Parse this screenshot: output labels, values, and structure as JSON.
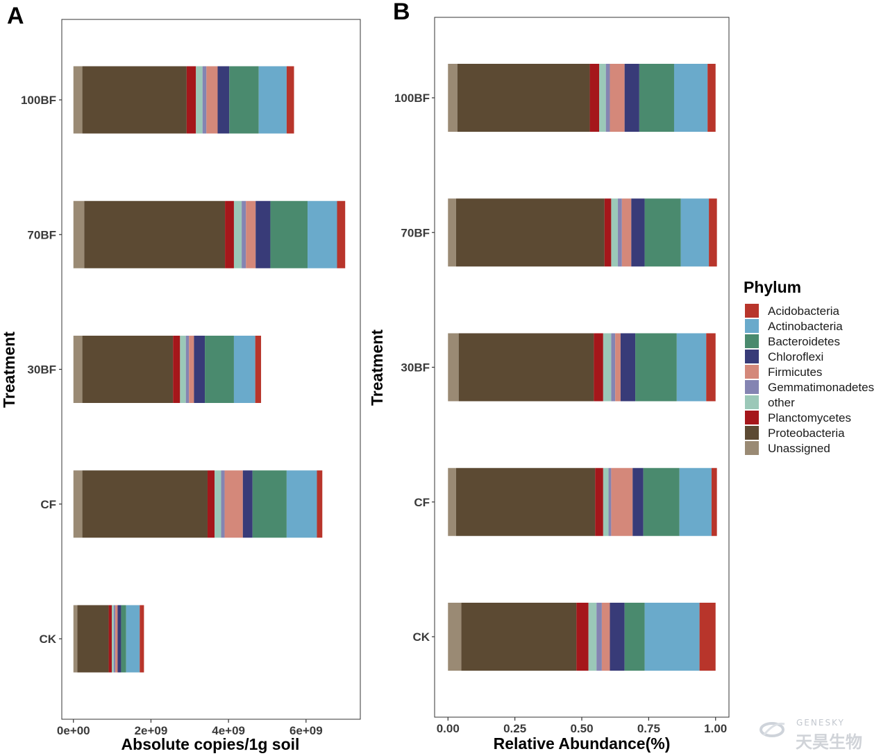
{
  "phyla_stack_order": [
    "Unassigned",
    "Proteobacteria",
    "Planctomycetes",
    "other",
    "Gemmatimonadetes",
    "Firmicutes",
    "Chloroflexi",
    "Bacteroidetes",
    "Actinobacteria",
    "Acidobacteria"
  ],
  "colors": {
    "Acidobacteria": "#B8352B",
    "Actinobacteria": "#6AAACB",
    "Bacteroidetes": "#4A8A6E",
    "Chloroflexi": "#383B78",
    "Firmicutes": "#D4887A",
    "Gemmatimonadetes": "#8484B2",
    "other": "#9BC8B8",
    "Planctomycetes": "#A5171B",
    "Proteobacteria": "#5C4A33",
    "Unassigned": "#9A8A74"
  },
  "legend": {
    "title": "Phylum",
    "items": [
      "Acidobacteria",
      "Actinobacteria",
      "Bacteroidetes",
      "Chloroflexi",
      "Firmicutes",
      "Gemmatimonadetes",
      "other",
      "Planctomycetes",
      "Proteobacteria",
      "Unassigned"
    ]
  },
  "watermark": {
    "text": "GENESKY",
    "cn": "天昊生物"
  },
  "chart_data": [
    {
      "panel": "A",
      "type": "bar",
      "orientation": "horizontal",
      "stacked": true,
      "xlabel": "Absolute copies/1g soil",
      "ylabel": "Treatment",
      "xlim": [
        -300000000.0,
        7400000000.0
      ],
      "xticks": [
        0,
        2000000000,
        4000000000,
        6000000000
      ],
      "xtick_labels": [
        "0e+00",
        "2e+09",
        "4e+09",
        "6e+09"
      ],
      "categories": [
        "CK",
        "CF",
        "30BF",
        "70BF",
        "100BF"
      ],
      "series": [
        {
          "name": "Unassigned",
          "values": [
            100000000.0,
            230000000.0,
            230000000.0,
            280000000.0,
            230000000.0
          ]
        },
        {
          "name": "Proteobacteria",
          "values": [
            810000000.0,
            3230000000.0,
            2340000000.0,
            3630000000.0,
            2690000000.0
          ]
        },
        {
          "name": "Planctomycetes",
          "values": [
            80000000.0,
            180000000.0,
            180000000.0,
            230000000.0,
            240000000.0
          ]
        },
        {
          "name": "other",
          "values": [
            50000000.0,
            170000000.0,
            150000000.0,
            200000000.0,
            170000000.0
          ]
        },
        {
          "name": "Gemmatimonadetes",
          "values": [
            40000000.0,
            90000000.0,
            80000000.0,
            110000000.0,
            100000000.0
          ]
        },
        {
          "name": "Firmicutes",
          "values": [
            60000000.0,
            470000000.0,
            130000000.0,
            250000000.0,
            290000000.0
          ]
        },
        {
          "name": "Chloroflexi",
          "values": [
            90000000.0,
            250000000.0,
            280000000.0,
            380000000.0,
            300000000.0
          ]
        },
        {
          "name": "Bacteroidetes",
          "values": [
            130000000.0,
            880000000.0,
            750000000.0,
            960000000.0,
            760000000.0
          ]
        },
        {
          "name": "Actinobacteria",
          "values": [
            350000000.0,
            780000000.0,
            550000000.0,
            760000000.0,
            720000000.0
          ]
        },
        {
          "name": "Acidobacteria",
          "values": [
            110000000.0,
            140000000.0,
            150000000.0,
            210000000.0,
            190000000.0
          ]
        }
      ]
    },
    {
      "panel": "B",
      "type": "bar",
      "orientation": "horizontal",
      "stacked": true,
      "xlabel": "Relative Abundance(%)",
      "ylabel": "Treatment",
      "xlim": [
        -0.05,
        1.05
      ],
      "xticks": [
        0,
        0.25,
        0.5,
        0.75,
        1.0
      ],
      "xtick_labels": [
        "0.00",
        "0.25",
        "0.50",
        "0.75",
        "1.00"
      ],
      "categories": [
        "CK",
        "CF",
        "30BF",
        "70BF",
        "100BF"
      ],
      "series": [
        {
          "name": "Unassigned",
          "values": [
            0.05,
            0.03,
            0.04,
            0.03,
            0.035
          ]
        },
        {
          "name": "Proteobacteria",
          "values": [
            0.43,
            0.52,
            0.505,
            0.555,
            0.495
          ]
        },
        {
          "name": "Planctomycetes",
          "values": [
            0.045,
            0.03,
            0.035,
            0.025,
            0.035
          ]
        },
        {
          "name": "other",
          "values": [
            0.03,
            0.02,
            0.03,
            0.025,
            0.025
          ]
        },
        {
          "name": "Gemmatimonadetes",
          "values": [
            0.02,
            0.01,
            0.015,
            0.015,
            0.015
          ]
        },
        {
          "name": "Firmicutes",
          "values": [
            0.03,
            0.08,
            0.02,
            0.035,
            0.055
          ]
        },
        {
          "name": "Chloroflexi",
          "values": [
            0.055,
            0.04,
            0.055,
            0.05,
            0.055
          ]
        },
        {
          "name": "Bacteroidetes",
          "values": [
            0.075,
            0.135,
            0.155,
            0.135,
            0.13
          ]
        },
        {
          "name": "Actinobacteria",
          "values": [
            0.205,
            0.12,
            0.11,
            0.105,
            0.125
          ]
        },
        {
          "name": "Acidobacteria",
          "values": [
            0.06,
            0.02,
            0.035,
            0.03,
            0.03
          ]
        }
      ]
    }
  ]
}
